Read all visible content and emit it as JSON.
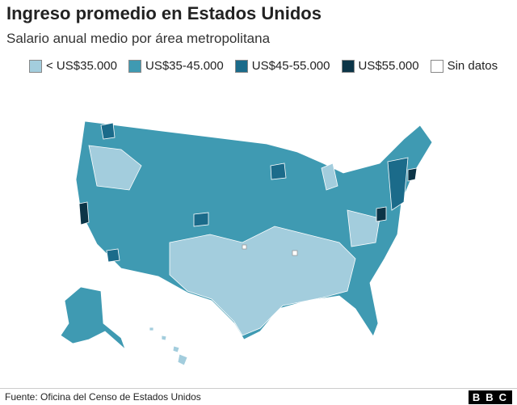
{
  "header": {
    "title": "Ingreso promedio en Estados Unidos",
    "subtitle": "Salario anual medio por área metropolitana"
  },
  "legend": [
    {
      "label": "< US$35.000",
      "color": "#a3cddd"
    },
    {
      "label": "US$35-45.000",
      "color": "#3f9ab2"
    },
    {
      "label": "US$45-55.000",
      "color": "#1b6b8a"
    },
    {
      "label": "US$55.000",
      "color": "#0c3547"
    },
    {
      "label": "Sin datos",
      "color": "#ffffff"
    }
  ],
  "footer": {
    "source": "Fuente: Oficina del Censo de Estados Unidos",
    "logo": "BBC"
  }
}
